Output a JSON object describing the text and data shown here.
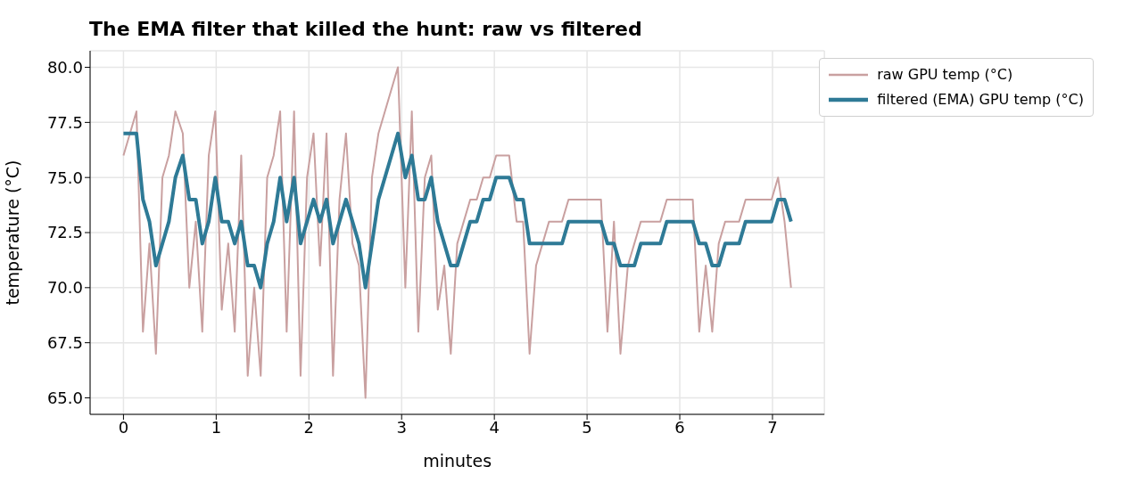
{
  "chart_data": {
    "type": "line",
    "title": "The EMA filter that killed the hunt: raw vs filtered",
    "xlabel": "minutes",
    "ylabel": "temperature (°C)",
    "x": [
      0,
      0.07,
      0.14,
      0.21,
      0.28,
      0.35,
      0.42,
      0.49,
      0.56,
      0.64,
      0.71,
      0.78,
      0.85,
      0.92,
      0.99,
      1.06,
      1.13,
      1.2,
      1.27,
      1.34,
      1.41,
      1.48,
      1.55,
      1.62,
      1.69,
      1.76,
      1.84,
      1.91,
      1.98,
      2.05,
      2.12,
      2.19,
      2.26,
      2.33,
      2.4,
      2.47,
      2.54,
      2.61,
      2.68,
      2.75,
      2.82,
      2.89,
      2.96,
      3.04,
      3.11,
      3.18,
      3.25,
      3.32,
      3.39,
      3.46,
      3.53,
      3.6,
      3.67,
      3.74,
      3.81,
      3.88,
      3.95,
      4.02,
      4.09,
      4.16,
      4.24,
      4.31,
      4.38,
      4.45,
      4.52,
      4.59,
      4.66,
      4.73,
      4.8,
      4.87,
      4.94,
      5.01,
      5.08,
      5.15,
      5.22,
      5.29,
      5.36,
      5.44,
      5.51,
      5.58,
      5.65,
      5.72,
      5.79,
      5.86,
      5.93,
      6.0,
      6.07,
      6.14,
      6.21,
      6.28,
      6.35,
      6.42,
      6.49,
      6.56,
      6.64,
      6.71,
      6.78,
      6.85,
      6.92,
      6.99,
      7.06,
      7.13,
      7.2
    ],
    "series": [
      {
        "name": "raw GPU temp (°C)",
        "color": "#c9a0a0",
        "values": [
          76,
          77,
          78,
          68,
          72,
          67,
          75,
          76,
          78,
          77,
          70,
          73,
          68,
          76,
          78,
          69,
          72,
          68,
          76,
          66,
          70,
          66,
          75,
          76,
          78,
          68,
          78,
          66,
          75,
          77,
          71,
          77,
          66,
          74,
          77,
          72,
          71,
          65,
          75,
          77,
          78,
          79,
          80,
          70,
          78,
          68,
          75,
          76,
          69,
          71,
          67,
          72,
          73,
          74,
          74,
          75,
          75,
          76,
          76,
          76,
          73,
          73,
          67,
          71,
          72,
          73,
          73,
          73,
          74,
          74,
          74,
          74,
          74,
          74,
          68,
          73,
          67,
          71,
          72,
          73,
          73,
          73,
          73,
          74,
          74,
          74,
          74,
          74,
          68,
          71,
          68,
          72,
          73,
          73,
          73,
          74,
          74,
          74,
          74,
          74,
          75,
          73,
          70
        ]
      },
      {
        "name": "filtered (EMA) GPU temp (°C)",
        "color": "#2e7a96",
        "values": [
          77,
          77,
          77,
          74,
          73,
          71,
          72,
          73,
          75,
          76,
          74,
          74,
          72,
          73,
          75,
          73,
          73,
          72,
          73,
          71,
          71,
          70,
          72,
          73,
          75,
          73,
          75,
          72,
          73,
          74,
          73,
          74,
          72,
          73,
          74,
          73,
          72,
          70,
          72,
          74,
          75,
          76,
          77,
          75,
          76,
          74,
          74,
          75,
          73,
          72,
          71,
          71,
          72,
          73,
          73,
          74,
          74,
          75,
          75,
          75,
          74,
          74,
          72,
          72,
          72,
          72,
          72,
          72,
          73,
          73,
          73,
          73,
          73,
          73,
          72,
          72,
          71,
          71,
          71,
          72,
          72,
          72,
          72,
          73,
          73,
          73,
          73,
          73,
          72,
          72,
          71,
          71,
          72,
          72,
          72,
          73,
          73,
          73,
          73,
          73,
          74,
          74,
          73
        ]
      }
    ],
    "xlim": [
      -0.36,
      7.56
    ],
    "xticks": [
      0,
      1,
      2,
      3,
      4,
      5,
      6,
      7
    ],
    "ylim": [
      64.25,
      80.75
    ],
    "yticks": [
      {
        "value": 65,
        "label": "65.0"
      },
      {
        "value": 67.5,
        "label": "67.5"
      },
      {
        "value": 70,
        "label": "70.0"
      },
      {
        "value": 72.5,
        "label": "72.5"
      },
      {
        "value": 75,
        "label": "75.0"
      },
      {
        "value": 77.5,
        "label": "77.5"
      },
      {
        "value": 80,
        "label": "80.0"
      }
    ],
    "grid": true,
    "legend": "top right",
    "line_style": "solid"
  }
}
